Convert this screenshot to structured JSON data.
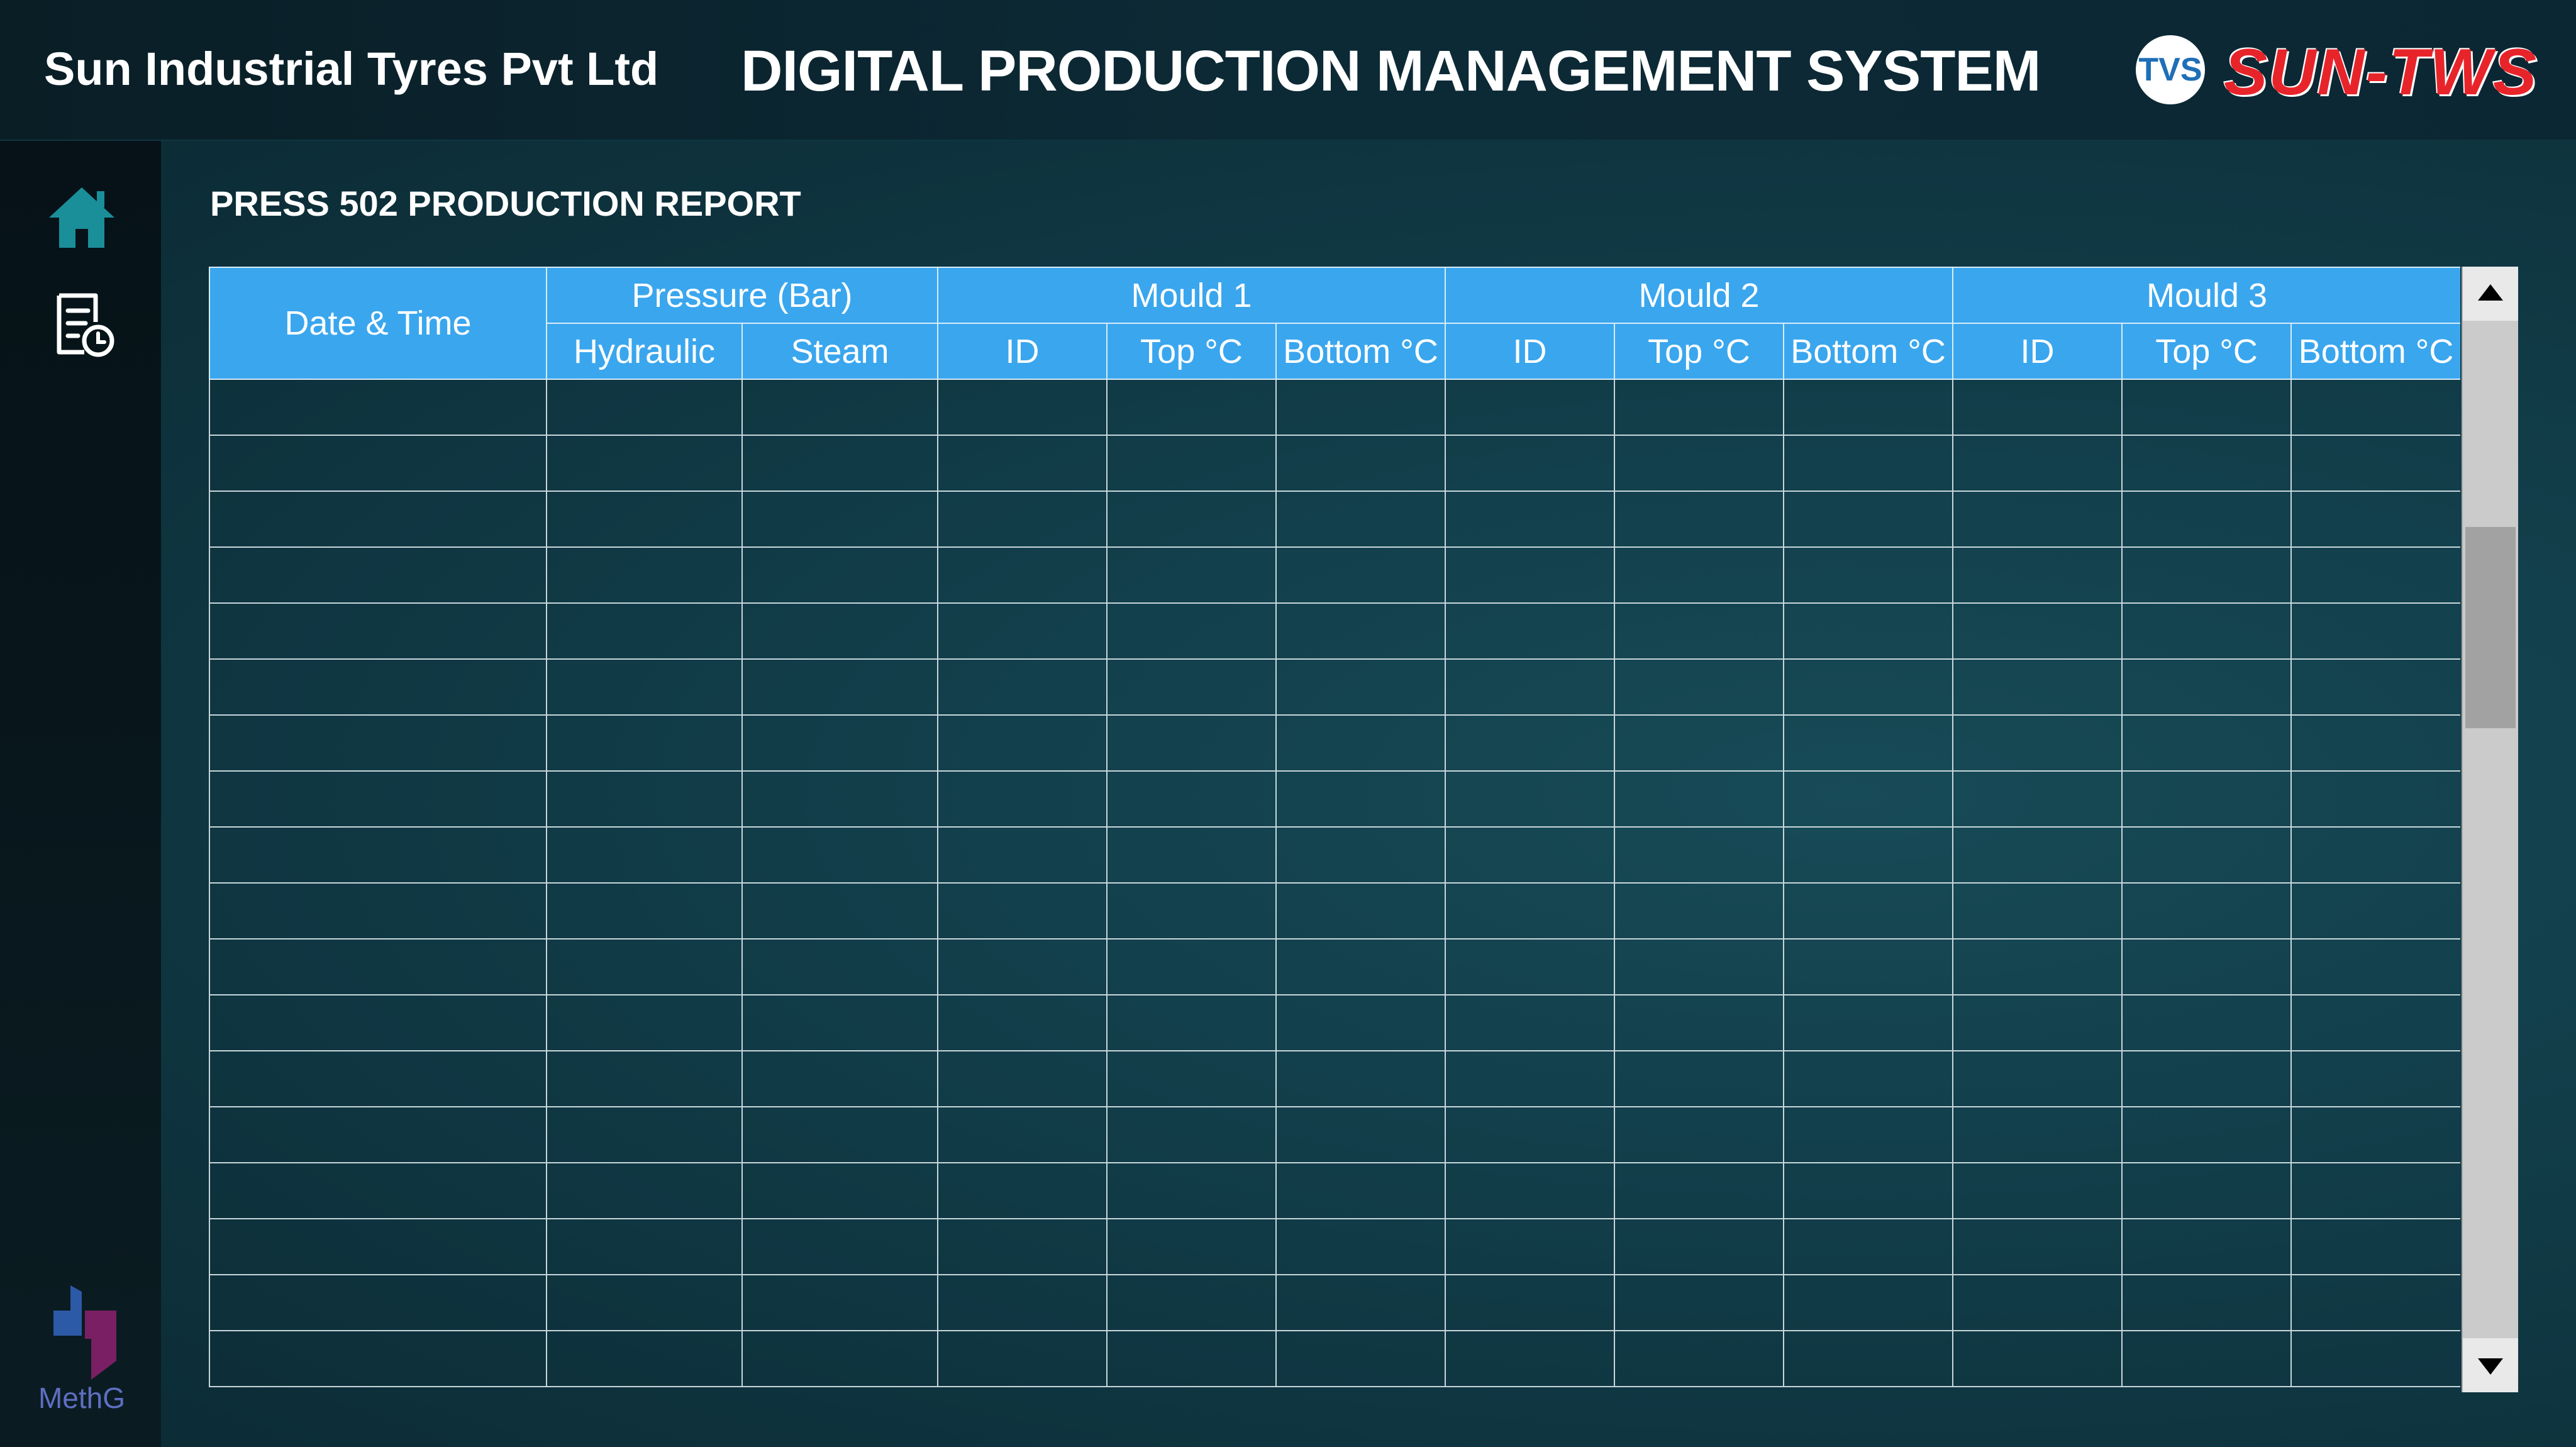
{
  "header": {
    "company": "Sun Industrial Tyres Pvt Ltd",
    "title": "DIGITAL PRODUCTION MANAGEMENT SYSTEM",
    "logo_badge": "TVS",
    "logo_text": "SUN-TWS"
  },
  "sidebar": {
    "items": [
      {
        "icon": "home-icon"
      },
      {
        "icon": "report-clock-icon"
      }
    ],
    "brand": "MethG"
  },
  "report": {
    "title": "PRESS 502 PRODUCTION REPORT",
    "groups": {
      "datetime": "Date & Time",
      "pressure": "Pressure (Bar)",
      "mould1": "Mould 1",
      "mould2": "Mould 2",
      "mould3": "Mould 3"
    },
    "subheaders": {
      "hydraulic": "Hydraulic",
      "steam": "Steam",
      "id": "ID",
      "top": "Top °C",
      "bottom": "Bottom °C"
    },
    "row_count": 18
  },
  "colors": {
    "header_bg": "#3aa6ee",
    "accent": "#1a8f9a",
    "brand_red": "#e8242b"
  }
}
